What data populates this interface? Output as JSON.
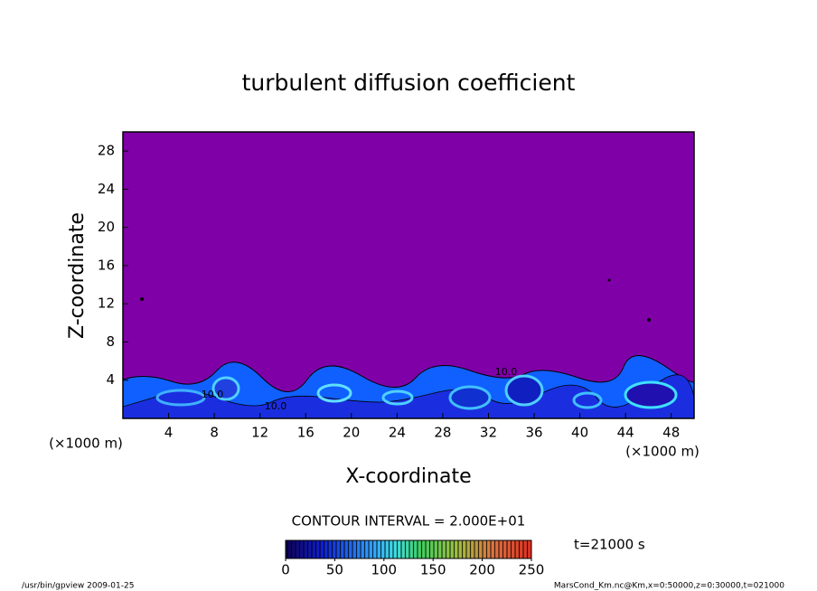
{
  "chart_data": {
    "type": "contour",
    "title": "turbulent diffusion coefficient",
    "xlabel": "X-coordinate",
    "ylabel": "Z-coordinate",
    "axis_unit": "(×1000 m)",
    "xlim": [
      0,
      50
    ],
    "xticks": [
      4,
      8,
      12,
      16,
      20,
      24,
      28,
      32,
      36,
      40,
      44,
      48
    ],
    "ylim": [
      0,
      30
    ],
    "yticks": [
      4,
      8,
      12,
      16,
      20,
      24,
      28
    ],
    "background_color": "#8000a8",
    "contour_labels": [
      "10.0",
      "10.0",
      "10.0"
    ],
    "contour_interval": "CONTOUR INTERVAL = 2.000E+01",
    "colorbar": {
      "lim": [
        0,
        250
      ],
      "ticks": [
        0,
        50,
        100,
        150,
        200,
        250
      ]
    },
    "time_label": "t=21000 s",
    "footer_left": "/usr/bin/gpview   2009-01-25",
    "footer_right": "MarsCond_Km.nc@Km,x=0:50000,z=0:30000,t=021000"
  }
}
